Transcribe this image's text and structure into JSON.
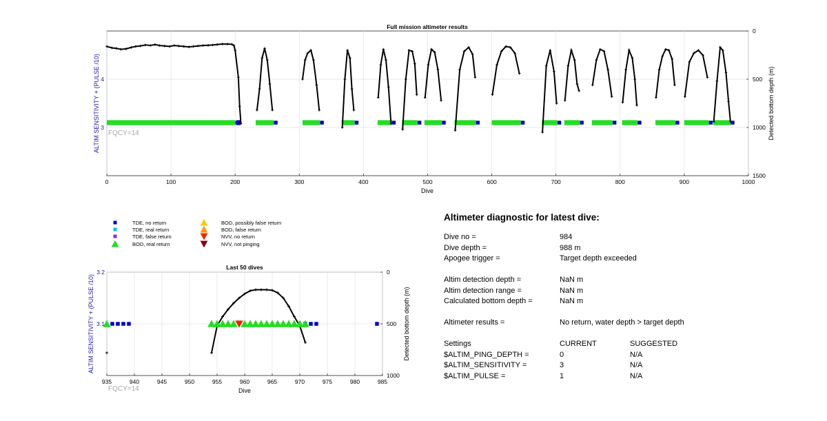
{
  "top_chart": {
    "title": "Full mission altimeter results",
    "xlabel": "Dive",
    "ylabel_left": "ALTIM SENSITIVITY + (PULSE /10)",
    "ylabel_right": "Detected bottom depth (m)",
    "annotation": "FQCY=14",
    "xlim": [
      0,
      1000
    ],
    "xticks": [
      0,
      100,
      200,
      300,
      400,
      500,
      600,
      700,
      800,
      900,
      1000
    ],
    "left_yticks": [
      "3",
      "4"
    ],
    "right_yticks": [
      "0",
      "500",
      "1000",
      "1500"
    ]
  },
  "bottom_chart": {
    "title": "Last 50 dives",
    "xlabel": "Dive",
    "ylabel_left": "ALTIM SENSITIVITY + (PULSE /10)",
    "ylabel_right": "Detected bottom depth (m)",
    "annotation": "FQCY=14",
    "xticks": [
      935,
      940,
      945,
      950,
      955,
      960,
      965,
      970,
      975,
      980,
      985
    ],
    "left_yticks": [
      "3.1",
      "3.2"
    ],
    "right_yticks": [
      "0",
      "500",
      "1000"
    ]
  },
  "legend": [
    {
      "label": "TDE, no return",
      "marker": "square",
      "color": "#0000cc"
    },
    {
      "label": "TDE, real return",
      "marker": "square",
      "color": "#00bfdf"
    },
    {
      "label": "TDE, false return",
      "marker": "square",
      "color": "#8a2be2"
    },
    {
      "label": "BOD, real return",
      "marker": "triangle-up",
      "color": "#22dd22"
    },
    {
      "label": "BOD, possibly false return",
      "marker": "triangle-up",
      "color": "#ffcc00"
    },
    {
      "label": "BOD, false return",
      "marker": "triangle-up",
      "color": "#ff9900"
    },
    {
      "label": "NVV, no return",
      "marker": "triangle-down",
      "color": "#ee2200"
    },
    {
      "label": "NVV, not pinging",
      "marker": "triangle-down",
      "color": "#880000"
    }
  ],
  "diagnostic": {
    "title": "Altimeter diagnostic for latest dive:",
    "dive_no_label": "Dive no =",
    "dive_no_value": "984",
    "dive_depth_label": "Dive depth =",
    "dive_depth_value": "988 m",
    "apogee_label": "Apogee trigger =",
    "apogee_value": "Target depth exceeded",
    "altim_depth_label": "Altim detection depth =",
    "altim_depth_value": "NaN m",
    "altim_range_label": "Altim detection range =",
    "altim_range_value": "NaN m",
    "calc_depth_label": "Calculated bottom depth =",
    "calc_depth_value": "NaN m",
    "results_label": "Altimeter results =",
    "results_value": "No return, water depth > target depth",
    "settings_label": "Settings",
    "current_header": "CURRENT",
    "suggested_header": "SUGGESTED",
    "ping_depth_label": "$ALTIM_PING_DEPTH =",
    "ping_depth_current": "0",
    "ping_depth_suggested": "N/A",
    "sensitivity_label": "$ALTIM_SENSITIVITY =",
    "sensitivity_current": "3",
    "sensitivity_suggested": "N/A",
    "pulse_label": "$ALTIM_PULSE =",
    "pulse_current": "1",
    "pulse_suggested": "N/A"
  },
  "chart_data": [
    {
      "type": "scatter",
      "title": "Full mission altimeter results",
      "xlabel": "Dive",
      "ylabel": "ALTIM SENSITIVITY + (PULSE /10)",
      "y2label": "Detected bottom depth (m)",
      "xlim": [
        0,
        1000
      ],
      "ylim_left": [
        2,
        5
      ],
      "ylim_right": [
        1500,
        0
      ],
      "grid": true,
      "setting_bands": [
        {
          "from": 0,
          "to": 200,
          "y": 3.1,
          "marker": "BOD, real return"
        },
        {
          "from": 202,
          "to": 208,
          "y": 3.1,
          "marker": "TDE, no return"
        },
        {
          "from": 232,
          "to": 260,
          "y": 3.1,
          "marker": "BOD, real return"
        },
        {
          "from": 305,
          "to": 332,
          "y": 3.1,
          "marker": "BOD, real return"
        },
        {
          "from": 366,
          "to": 386,
          "y": 3.1,
          "marker": "BOD, real return"
        },
        {
          "from": 422,
          "to": 444,
          "y": 3.1,
          "marker": "BOD, real return"
        },
        {
          "from": 460,
          "to": 484,
          "y": 3.1,
          "marker": "BOD, real return"
        },
        {
          "from": 495,
          "to": 522,
          "y": 3.1,
          "marker": "BOD, real return"
        },
        {
          "from": 542,
          "to": 575,
          "y": 3.1,
          "marker": "BOD, real return"
        },
        {
          "from": 600,
          "to": 645,
          "y": 3.1,
          "marker": "BOD, real return"
        },
        {
          "from": 678,
          "to": 702,
          "y": 3.1,
          "marker": "BOD, real return"
        },
        {
          "from": 713,
          "to": 737,
          "y": 3.1,
          "marker": "BOD, real return"
        },
        {
          "from": 756,
          "to": 788,
          "y": 3.1,
          "marker": "BOD, real return"
        },
        {
          "from": 803,
          "to": 827,
          "y": 3.1,
          "marker": "BOD, real return"
        },
        {
          "from": 855,
          "to": 886,
          "y": 3.1,
          "marker": "BOD, real return"
        },
        {
          "from": 900,
          "to": 938,
          "y": 3.1,
          "marker": "BOD, real return"
        },
        {
          "from": 945,
          "to": 972,
          "y": 3.1,
          "marker": "BOD, real return"
        }
      ],
      "series": [
        {
          "name": "Detected bottom depth",
          "axis": "right",
          "x": [
            0,
            8,
            15,
            22,
            30,
            38,
            45,
            52,
            60,
            68,
            75,
            82,
            90,
            98,
            105,
            112,
            120,
            128,
            135,
            142,
            150,
            158,
            165,
            172,
            180,
            188,
            195,
            198,
            200,
            205,
            207,
            209,
            null,
            234,
            238,
            242,
            246,
            250,
            254,
            258,
            null,
            305,
            309,
            313,
            318,
            322,
            327,
            331,
            null,
            367,
            371,
            375,
            379,
            382,
            385,
            null,
            423,
            427,
            431,
            435,
            439,
            443,
            null,
            461,
            466,
            471,
            476,
            480,
            483,
            null,
            496,
            501,
            506,
            511,
            516,
            521,
            null,
            543,
            550,
            557,
            564,
            570,
            574,
            null,
            601,
            608,
            615,
            622,
            629,
            636,
            643,
            null,
            679,
            685,
            691,
            697,
            701,
            null,
            714,
            719,
            724,
            729,
            733,
            736,
            null,
            757,
            763,
            769,
            775,
            781,
            787,
            null,
            804,
            809,
            814,
            819,
            823,
            826,
            null,
            856,
            861,
            866,
            871,
            876,
            881,
            885,
            null,
            901,
            908,
            915,
            922,
            929,
            936,
            null,
            946,
            951,
            956,
            960,
            965,
            969,
            972
          ],
          "y": [
            160,
            175,
            180,
            190,
            185,
            170,
            160,
            155,
            145,
            150,
            140,
            150,
            155,
            160,
            150,
            155,
            160,
            165,
            160,
            155,
            150,
            148,
            145,
            140,
            135,
            135,
            138,
            150,
            200,
            480,
            780,
            960,
            null,
            820,
            600,
            280,
            180,
            300,
            550,
            820,
            null,
            500,
            300,
            230,
            200,
            300,
            560,
            820,
            null,
            1000,
            500,
            200,
            280,
            600,
            820,
            null,
            690,
            350,
            190,
            300,
            580,
            960,
            null,
            1020,
            500,
            200,
            210,
            340,
            660,
            null,
            690,
            350,
            190,
            220,
            400,
            720,
            null,
            1030,
            400,
            210,
            170,
            240,
            480,
            null,
            660,
            350,
            210,
            160,
            170,
            230,
            440,
            null,
            1050,
            360,
            200,
            420,
            750,
            null,
            720,
            360,
            200,
            300,
            550,
            620,
            null,
            560,
            300,
            190,
            210,
            400,
            680,
            null,
            740,
            400,
            200,
            280,
            500,
            770,
            null,
            690,
            400,
            260,
            190,
            200,
            290,
            560,
            null,
            680,
            320,
            230,
            200,
            250,
            480,
            null,
            940,
            520,
            170,
            200,
            430,
            730,
            940
          ]
        }
      ]
    },
    {
      "type": "scatter",
      "title": "Last 50 dives",
      "xlabel": "Dive",
      "ylabel": "ALTIM SENSITIVITY + (PULSE /10)",
      "y2label": "Detected bottom depth (m)",
      "xlim": [
        935,
        985
      ],
      "ylim_left": [
        3.0,
        3.2
      ],
      "ylim_right": [
        1000,
        0
      ],
      "grid": true,
      "series": [
        {
          "name": "TDE, no return",
          "axis": "left",
          "x": [
            936,
            937,
            938,
            939,
            971,
            972,
            973,
            984
          ],
          "y": [
            3.1,
            3.1,
            3.1,
            3.1,
            3.1,
            3.1,
            3.1,
            3.1
          ]
        },
        {
          "name": "BOD, real return",
          "axis": "left",
          "x": [
            935,
            954,
            955,
            956,
            957,
            958,
            960,
            961,
            962,
            963,
            964,
            965,
            966,
            967,
            968,
            969,
            970,
            971
          ],
          "y": [
            3.1,
            3.1,
            3.1,
            3.1,
            3.1,
            3.1,
            3.1,
            3.1,
            3.1,
            3.1,
            3.1,
            3.1,
            3.1,
            3.1,
            3.1,
            3.1,
            3.1,
            3.1
          ]
        },
        {
          "name": "NVV, no return",
          "axis": "left",
          "x": [
            959
          ],
          "y": [
            3.1
          ]
        },
        {
          "name": "Detected bottom depth",
          "axis": "right",
          "x": [
            935,
            null,
            954,
            955,
            956,
            957,
            958,
            959,
            960,
            961,
            962,
            963,
            964,
            965,
            966,
            967,
            968,
            969,
            970,
            971
          ],
          "y": [
            780,
            null,
            780,
            520,
            430,
            360,
            300,
            250,
            210,
            180,
            170,
            170,
            170,
            175,
            200,
            250,
            330,
            430,
            520,
            680
          ]
        }
      ]
    }
  ]
}
